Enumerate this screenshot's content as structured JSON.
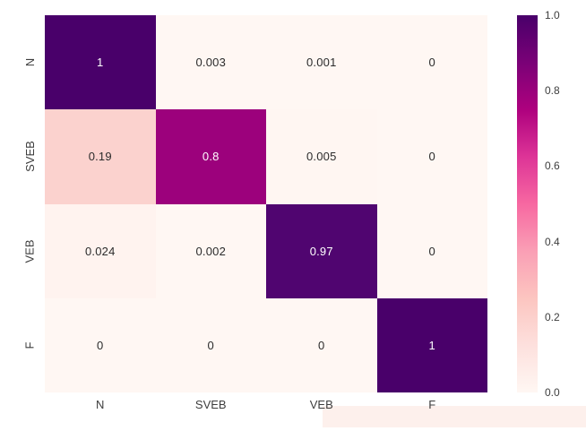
{
  "chart_data": {
    "type": "heatmap",
    "title": "",
    "xlabel": "",
    "ylabel": "",
    "x_categories": [
      "N",
      "SVEB",
      "VEB",
      "F"
    ],
    "y_categories": [
      "N",
      "SVEB",
      "VEB",
      "F"
    ],
    "matrix": [
      [
        1,
        0.003,
        0.001,
        0
      ],
      [
        0.19,
        0.8,
        0.005,
        0
      ],
      [
        0.024,
        0.002,
        0.97,
        0
      ],
      [
        0,
        0,
        0,
        1
      ]
    ],
    "cell_labels": [
      [
        "1",
        "0.003",
        "0.001",
        "0"
      ],
      [
        "0.19",
        "0.8",
        "0.005",
        "0"
      ],
      [
        "0.024",
        "0.002",
        "0.97",
        "0"
      ],
      [
        "0",
        "0",
        "0",
        "1"
      ]
    ],
    "cell_colors": [
      [
        "#49006A",
        "#FFF7F3",
        "#FFF7F3",
        "#FFF7F3"
      ],
      [
        "#FBD2CE",
        "#9C017C",
        "#FFF6F2",
        "#FFF7F3"
      ],
      [
        "#FFF3EF",
        "#FFF7F3",
        "#500570",
        "#FFF7F3"
      ],
      [
        "#FFF7F3",
        "#FFF7F3",
        "#FFF7F3",
        "#49006A"
      ]
    ],
    "cell_text_colors": [
      [
        "#ffffff",
        "#2b2b2b",
        "#2b2b2b",
        "#2b2b2b"
      ],
      [
        "#2b2b2b",
        "#ffffff",
        "#2b2b2b",
        "#2b2b2b"
      ],
      [
        "#2b2b2b",
        "#2b2b2b",
        "#ffffff",
        "#2b2b2b"
      ],
      [
        "#2b2b2b",
        "#2b2b2b",
        "#2b2b2b",
        "#ffffff"
      ]
    ],
    "value_range": [
      0.0,
      1.0
    ],
    "grid": false,
    "colormap": "RdPu",
    "legend_position": "right-colorbar",
    "colorbar": {
      "ticks": [
        "1.0",
        "0.8",
        "0.6",
        "0.4",
        "0.2",
        "0.0"
      ],
      "min": 0.0,
      "max": 1.0,
      "gradient_stops_bottom_to_top": [
        "#FFF7F3",
        "#FDE0DD",
        "#FCC5C0",
        "#FA9FB5",
        "#F768A1",
        "#DD3497",
        "#AE017E",
        "#7A0177",
        "#49006A"
      ]
    }
  },
  "colors": {
    "figure_background": "#ffffff",
    "tick_label": "#3d3d3d",
    "artifact_strip": "#fdf0ec"
  }
}
